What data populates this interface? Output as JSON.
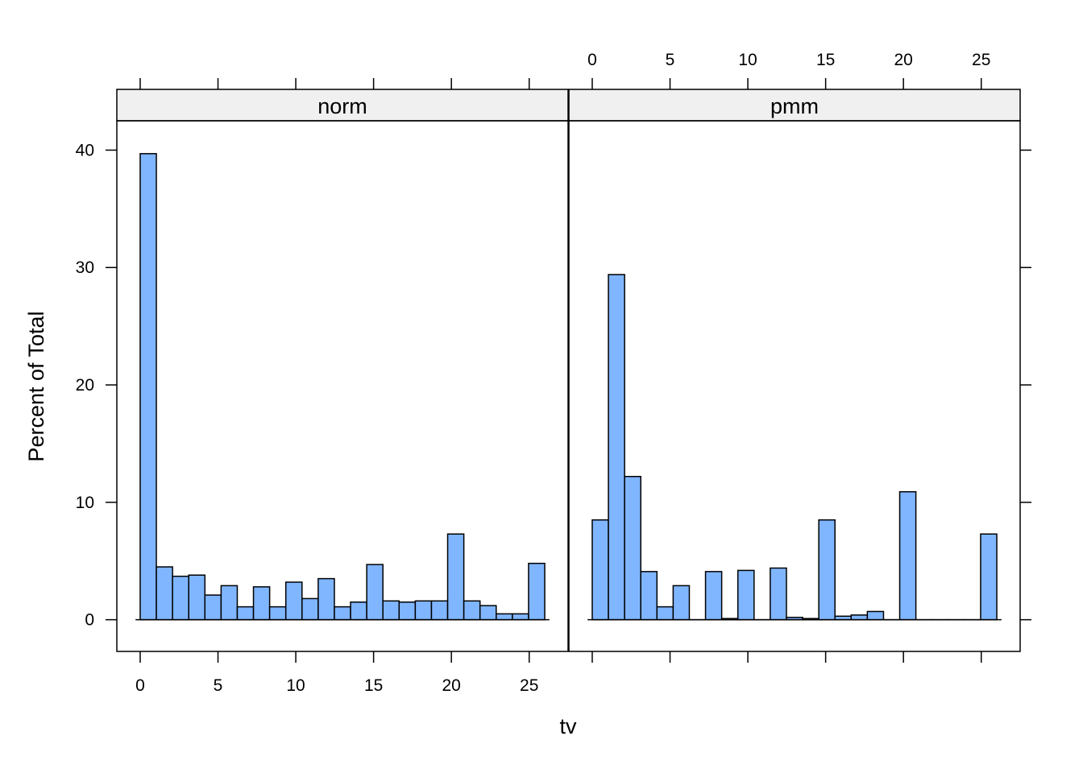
{
  "chart_data": {
    "type": "bar",
    "subtype": "histogram",
    "layout": "two lattice panels side by side",
    "xlabel": "tv",
    "ylabel": "Percent of Total",
    "xlim": [
      -1.5,
      27.5
    ],
    "ylim": [
      -2.7,
      42.5
    ],
    "x_ticks": [
      0,
      5,
      10,
      15,
      20,
      25
    ],
    "y_ticks": [
      0,
      10,
      20,
      30,
      40
    ],
    "bar_color": "#80B6FF",
    "strip_color": "#F0F0F0",
    "panels": [
      {
        "strip": "norm",
        "bin_width": 1.04,
        "bin_start": 0,
        "values": [
          39.7,
          4.5,
          3.7,
          3.8,
          2.1,
          2.9,
          1.1,
          2.8,
          1.1,
          3.2,
          1.8,
          3.5,
          1.1,
          1.5,
          4.7,
          1.6,
          1.5,
          1.6,
          1.6,
          7.3,
          1.6,
          1.2,
          0.5,
          0.5,
          4.8
        ]
      },
      {
        "strip": "pmm",
        "bin_width": 1.04,
        "bin_start": 0,
        "values": [
          8.5,
          29.4,
          12.2,
          4.1,
          1.1,
          2.9,
          0,
          4.1,
          0.1,
          4.2,
          0,
          4.4,
          0.2,
          0.1,
          8.5,
          0.3,
          0.4,
          0.7,
          0,
          10.9,
          0,
          0,
          0,
          0,
          7.3
        ]
      }
    ]
  }
}
